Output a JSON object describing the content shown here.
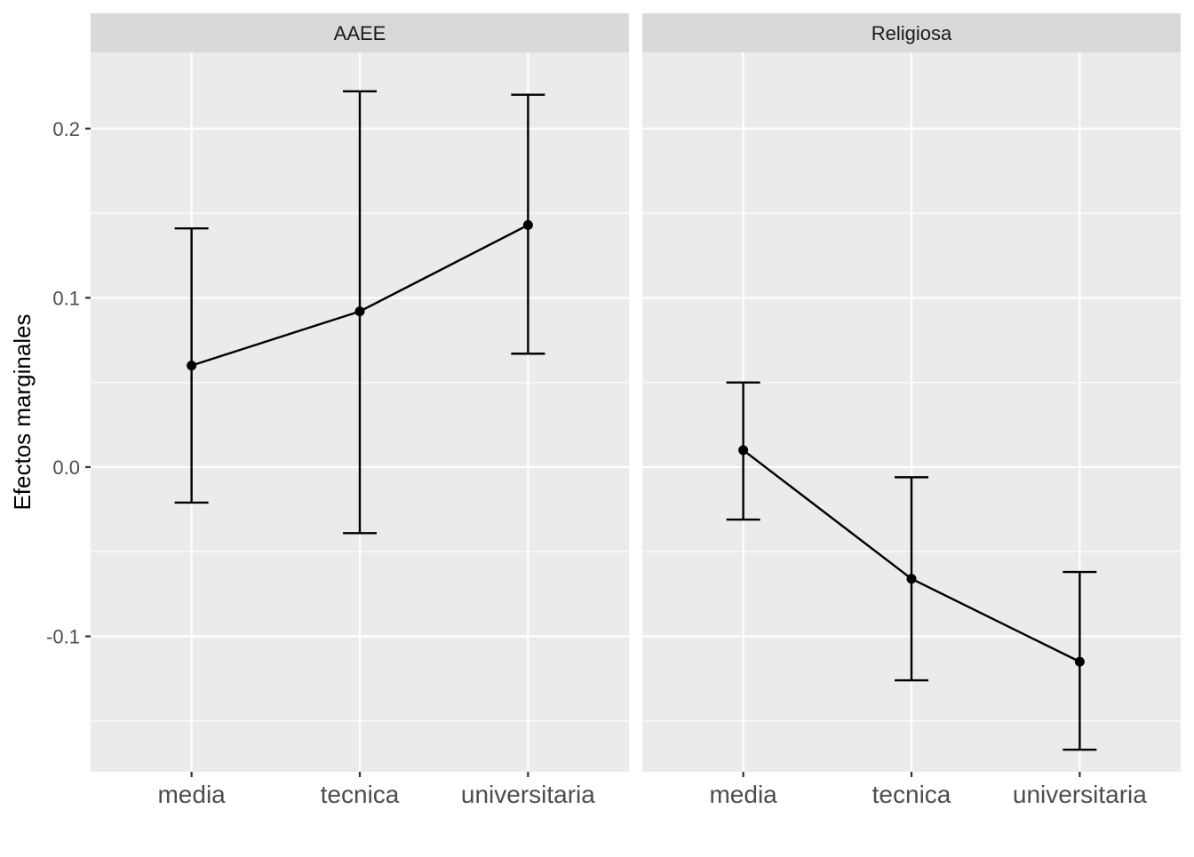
{
  "chart_data": {
    "type": "line",
    "ylabel": "Efectos marginales",
    "xlabel": "",
    "ylim": [
      -0.18,
      0.245
    ],
    "y_ticks": [
      -0.1,
      0.0,
      0.1,
      0.2
    ],
    "y_tick_labels": [
      "-0.1",
      "0.0",
      "0.1",
      "0.2"
    ],
    "categories": [
      "media",
      "tecnica",
      "universitaria"
    ],
    "grid": true,
    "legend": "none",
    "colors": {
      "panel": "#ebebeb",
      "strip": "#d9d9d9",
      "mark": "#000000",
      "grid": "#ffffff"
    },
    "facets": [
      {
        "label": "AAEE",
        "points": [
          {
            "x": "media",
            "y": 0.06,
            "ymin": -0.021,
            "ymax": 0.141
          },
          {
            "x": "tecnica",
            "y": 0.092,
            "ymin": -0.039,
            "ymax": 0.222
          },
          {
            "x": "universitaria",
            "y": 0.143,
            "ymin": 0.067,
            "ymax": 0.22
          }
        ]
      },
      {
        "label": "Religiosa",
        "points": [
          {
            "x": "media",
            "y": 0.01,
            "ymin": -0.031,
            "ymax": 0.05
          },
          {
            "x": "tecnica",
            "y": -0.066,
            "ymin": -0.126,
            "ymax": -0.006
          },
          {
            "x": "universitaria",
            "y": -0.115,
            "ymin": -0.167,
            "ymax": -0.062
          }
        ]
      }
    ]
  }
}
